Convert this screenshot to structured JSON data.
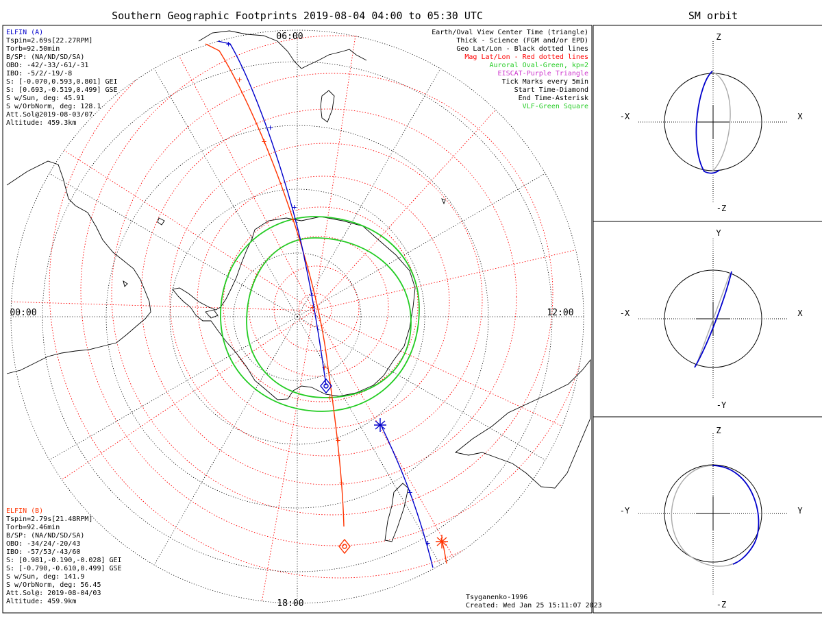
{
  "title": "Southern Geographic Footprints 2019-08-04 04:00 to 05:30 UTC",
  "sm_title": "SM orbit",
  "time_labels": {
    "top": "06:00",
    "left": "00:00",
    "right": "12:00",
    "bottom": "18:00"
  },
  "elfin_a": {
    "color": "#0000cc",
    "lines": [
      "ELFIN (A)",
      "Tspin=2.69s[22.27RPM]",
      "Torb=92.50min",
      "B/SP: (NA/ND/SD/SA)",
      "OBO: -42/-33/-61/-31",
      "IBO: -5/2/-19/-8",
      "S: [-0.070,0.593,0.801] GEI",
      "S: [0.693,-0.519,0.499] GSE",
      "S w/Sun, deg: 45.91",
      "S w/OrbNorm, deg: 128.1",
      "Att.Sol@2019-08-03/07",
      "Altitude: 459.3km"
    ]
  },
  "elfin_b": {
    "color": "#ff3300",
    "lines": [
      "ELFIN (B)",
      "Tspin=2.79s[21.48RPM]",
      "Torb=92.46min",
      "B/SP: (NA/ND/SD/SA)",
      "OBO: -34/24/-20/43",
      "IBO: -57/53/-43/60",
      "S: [0.981,-0.190,-0.028] GEI",
      "S: [-0.790,-0.610,0.499] GSE",
      "S w/Sun, deg: 141.9",
      "S w/OrbNorm, deg: 56.45",
      "Att.Sol@: 2019-08-04/03",
      "Altitude: 459.9km"
    ]
  },
  "legend": [
    {
      "text": "Earth/Oval View Center Time (triangle)",
      "color": "#000000"
    },
    {
      "text": "Thick - Science (FGM and/or EPD)",
      "color": "#000000"
    },
    {
      "text": "Geo Lat/Lon - Black dotted lines",
      "color": "#000000"
    },
    {
      "text": "Mag Lat/Lon - Red dotted lines",
      "color": "#ff0000"
    },
    {
      "text": "Auroral Oval-Green, kp=2",
      "color": "#22cc22"
    },
    {
      "text": "EISCAT-Purple Triangle",
      "color": "#cc33cc"
    },
    {
      "text": "Tick Marks every 5min",
      "color": "#000000"
    },
    {
      "text": "Start Time-Diamond",
      "color": "#000000"
    },
    {
      "text": "End Time-Asterisk",
      "color": "#000000"
    },
    {
      "text": "VLF-Green Square",
      "color": "#22cc22"
    }
  ],
  "credits": {
    "model": "Tsyganenko-1996",
    "created": "Created: Wed Jan 25 15:11:07 2023"
  },
  "sm_panels": [
    {
      "up": "Z",
      "down": "-Z",
      "left": "-X",
      "right": "X"
    },
    {
      "up": "Y",
      "down": "-Y",
      "left": "-X",
      "right": "X"
    },
    {
      "up": "Z",
      "down": "-Z",
      "left": "-Y",
      "right": "Y"
    }
  ],
  "colors": {
    "geo_grid": "#000000",
    "mag_grid": "#ff0000",
    "oval": "#22cc22",
    "track_a": "#0000cc",
    "track_b": "#ff3300",
    "sm_orbit_gray": "#aaaaaa"
  }
}
